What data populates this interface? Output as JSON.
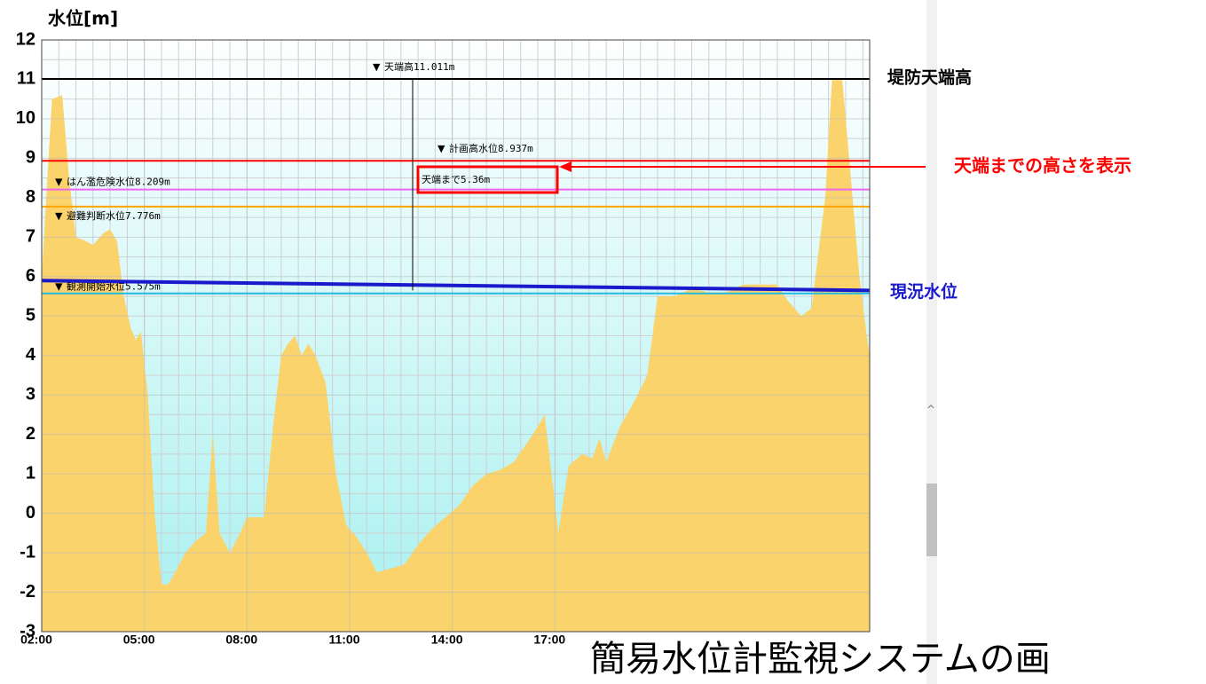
{
  "chart_data": {
    "type": "area",
    "y_label": "水位[m]",
    "x": [
      2.0,
      2.3,
      2.6,
      2.8,
      3.0,
      3.3,
      3.5,
      3.8,
      4.0,
      4.2,
      4.4,
      4.6,
      4.75,
      4.9,
      5.1,
      5.3,
      5.5,
      5.7,
      5.9,
      6.2,
      6.5,
      6.8,
      7.0,
      7.2,
      7.5,
      7.8,
      8.0,
      8.5,
      8.8,
      9.0,
      9.2,
      9.4,
      9.6,
      9.8,
      10.0,
      10.3,
      10.6,
      10.9,
      11.2,
      11.5,
      11.8,
      12.2,
      12.6,
      13.0,
      13.4,
      13.8,
      14.2,
      14.6,
      15.0,
      15.4,
      15.8,
      16.2,
      16.5,
      16.7,
      16.9,
      17.1,
      17.4,
      17.8,
      18.1,
      18.3,
      18.5,
      18.9,
      19.3,
      19.7,
      20.0,
      20.5,
      21.0,
      21.5,
      22.0,
      22.5,
      23.0,
      23.5,
      23.8,
      24.2,
      24.5,
      24.9,
      25.1,
      25.4,
      25.6,
      25.9,
      26.1,
      26.2
    ],
    "values": [
      6.0,
      10.5,
      10.6,
      8.5,
      7.0,
      6.9,
      6.8,
      7.1,
      7.2,
      6.9,
      5.5,
      4.7,
      4.4,
      4.6,
      3.0,
      0.0,
      -1.8,
      -1.8,
      -1.5,
      -1.0,
      -0.7,
      -0.5,
      2.0,
      -0.5,
      -1.0,
      -0.5,
      -0.1,
      -0.1,
      2.5,
      4.0,
      4.3,
      4.5,
      4.0,
      4.3,
      4.0,
      3.3,
      1.0,
      -0.3,
      -0.6,
      -1.0,
      -1.5,
      -1.4,
      -1.3,
      -0.8,
      -0.4,
      -0.1,
      0.2,
      0.7,
      1.0,
      1.1,
      1.3,
      1.8,
      2.2,
      2.5,
      1.0,
      -0.5,
      1.2,
      1.5,
      1.4,
      1.9,
      1.3,
      2.2,
      2.8,
      3.5,
      5.5,
      5.5,
      5.7,
      5.6,
      5.6,
      5.8,
      5.8,
      5.8,
      5.4,
      5.0,
      5.2,
      8.0,
      11.0,
      11.0,
      9.0,
      6.0,
      4.6,
      4.0
    ],
    "color": "#fbd36c",
    "xlim": [
      2,
      26.2
    ],
    "xticks": [
      {
        "value": 2,
        "label": "02:00"
      },
      {
        "value": 5,
        "label": "05:00"
      },
      {
        "value": 8,
        "label": "08:00"
      },
      {
        "value": 11,
        "label": "11:00"
      },
      {
        "value": 14,
        "label": "14:00"
      },
      {
        "value": 17,
        "label": "17:00"
      }
    ],
    "ylim": [
      -3,
      12
    ],
    "yticks": [
      -3,
      -2,
      -1,
      0,
      1,
      2,
      3,
      4,
      5,
      6,
      7,
      8,
      9,
      10,
      11,
      12
    ],
    "grid": true,
    "reference_lines": [
      {
        "label": "天端高11.011m",
        "value": 11.011,
        "color": "#000000"
      },
      {
        "label": "計画高水位8.937m",
        "value": 8.937,
        "color": "#ff0000"
      },
      {
        "label": "はん濫危険水位8.209m",
        "value": 8.209,
        "color": "#ee66ee"
      },
      {
        "label": "避難判断水位7.776m",
        "value": 7.776,
        "color": "#ffa500"
      },
      {
        "label": "観測開始水位5.575m",
        "value": 5.575,
        "color": "#22bbdd"
      }
    ],
    "current_level": {
      "label": "現況水位",
      "x": [
        2,
        26.2
      ],
      "values": [
        5.9,
        5.65
      ],
      "color": "#1a1acc"
    },
    "crest_distance": {
      "label": "天端まで5.36m",
      "value": 5.36
    },
    "crest_label": "堤防天端高",
    "callout": "天端までの高さを表示",
    "caption": "簡易水位計監視システムの画"
  }
}
